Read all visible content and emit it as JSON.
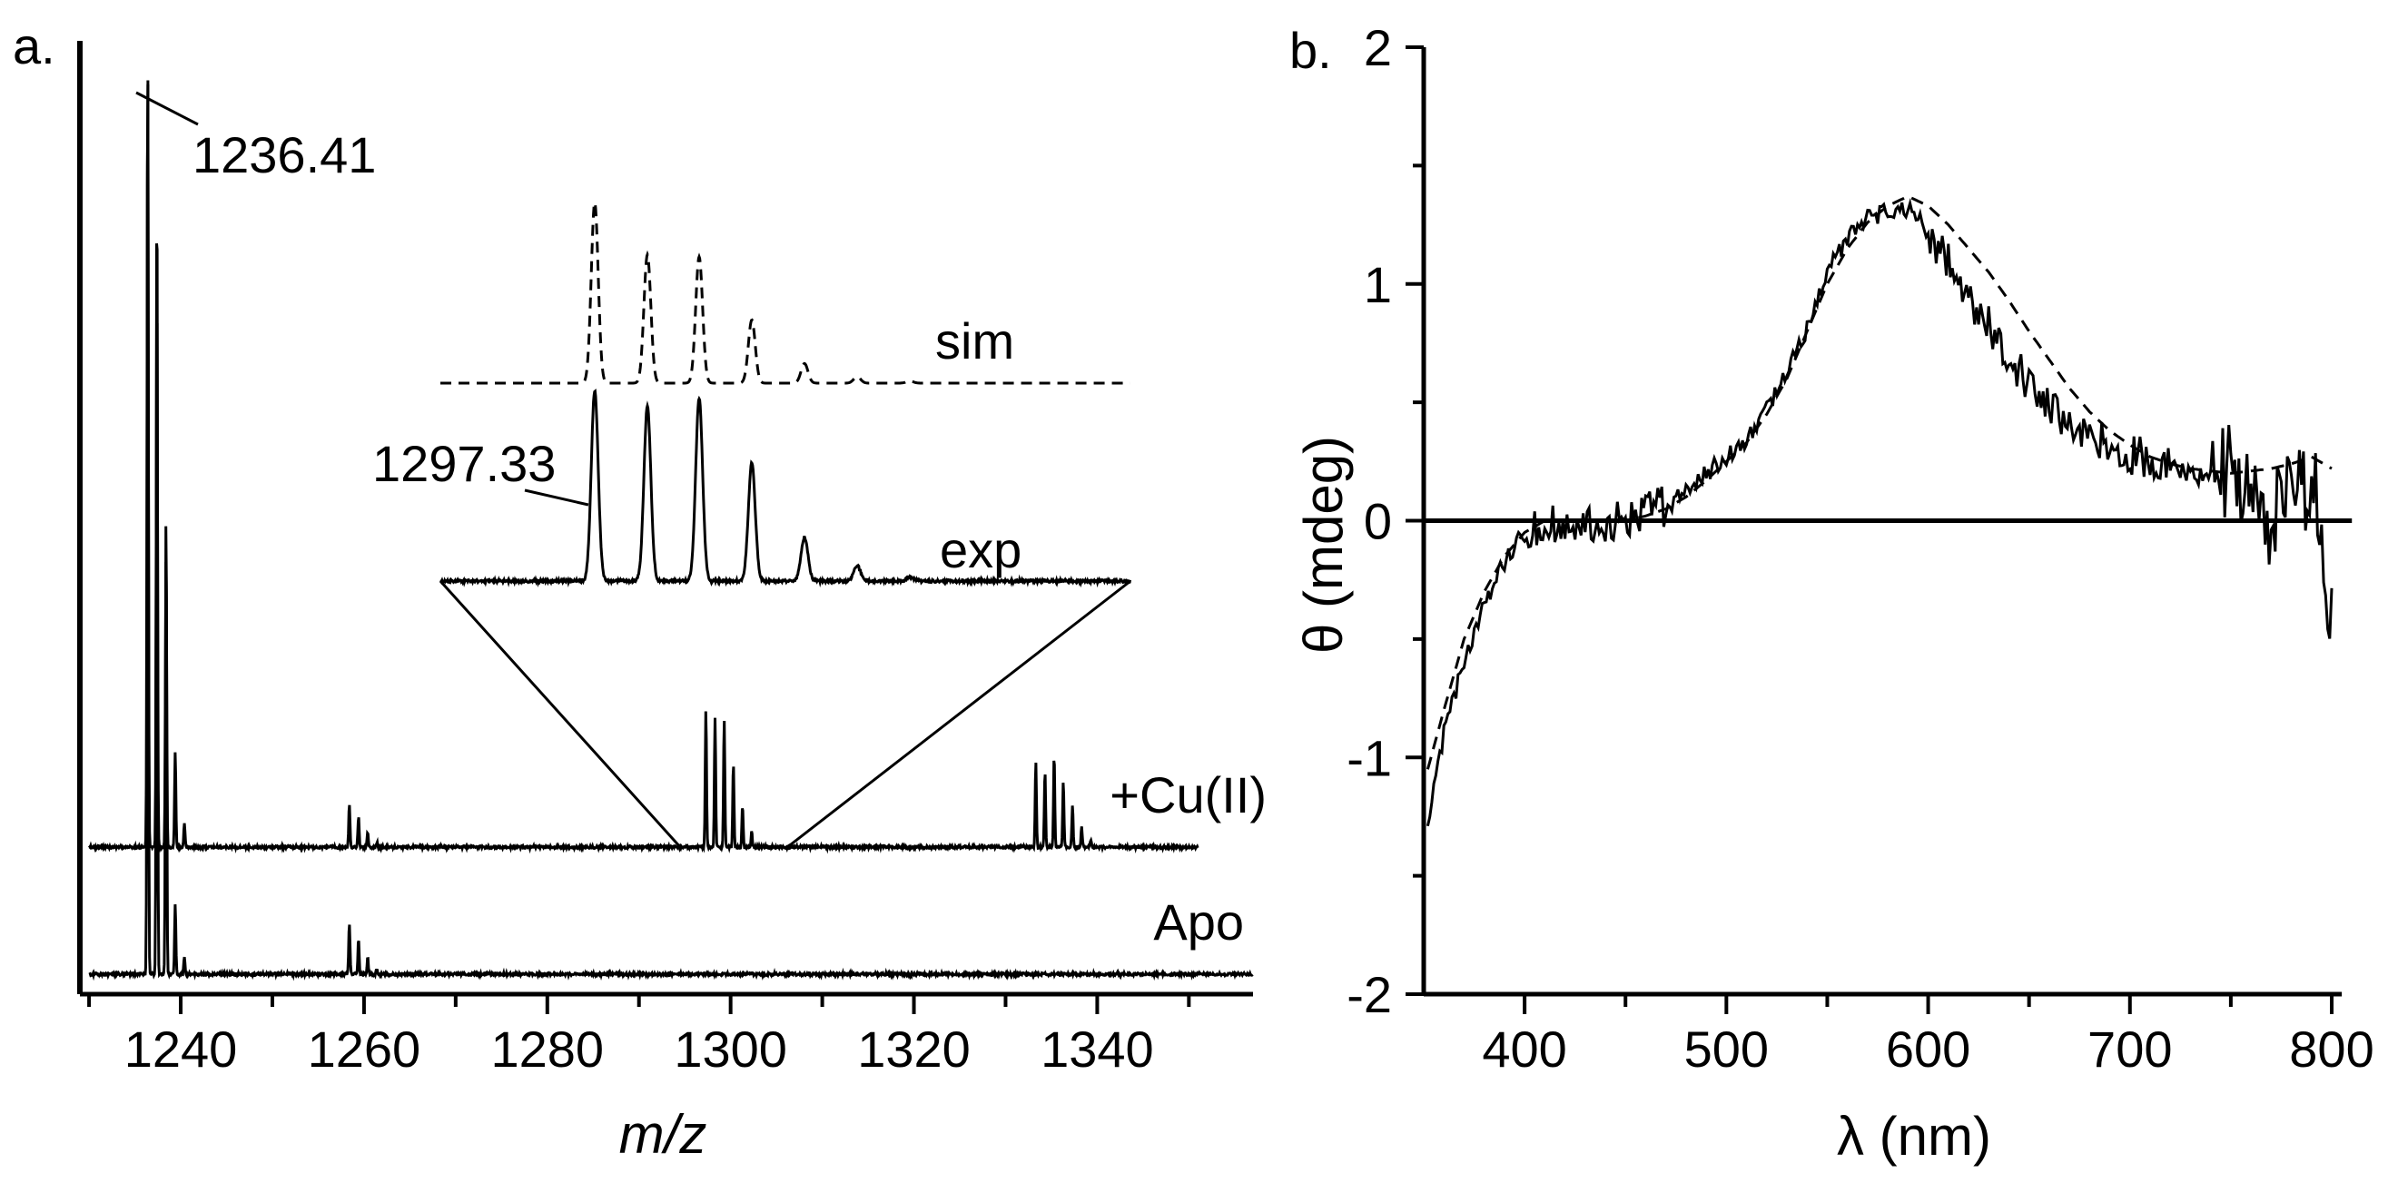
{
  "figure": {
    "panel_a_label": "a.",
    "panel_b_label": "b."
  },
  "chart_data": [
    {
      "type": "line",
      "title": "",
      "panel_label": "a.",
      "xlabel": "m/z",
      "ylabel": "",
      "xlim": [
        1229,
        1357
      ],
      "xticks": [
        1240,
        1260,
        1280,
        1300,
        1320,
        1340
      ],
      "xtick_labels": [
        "1240",
        "1260",
        "1280",
        "1300",
        "1320",
        "1340"
      ],
      "grid": false,
      "peak_label_main": "1236.41",
      "series": [
        {
          "name": "+Cu(II)",
          "x_range": [
            1230,
            1351
          ],
          "peaks": [
            [
              1236.4,
              1.0
            ],
            [
              1237.4,
              0.72
            ],
            [
              1238.4,
              0.37
            ],
            [
              1239.4,
              0.12
            ],
            [
              1240.4,
              0.03
            ],
            [
              1258.4,
              0.055
            ],
            [
              1259.4,
              0.038
            ],
            [
              1260.4,
              0.018
            ],
            [
              1261.4,
              0.006
            ],
            [
              1297.3,
              0.172
            ],
            [
              1298.3,
              0.162
            ],
            [
              1299.3,
              0.161
            ],
            [
              1300.3,
              0.105
            ],
            [
              1301.3,
              0.052
            ],
            [
              1302.3,
              0.019
            ],
            [
              1333.3,
              0.107
            ],
            [
              1334.3,
              0.095
            ],
            [
              1335.3,
              0.115
            ],
            [
              1336.3,
              0.082
            ],
            [
              1337.3,
              0.052
            ],
            [
              1338.3,
              0.025
            ],
            [
              1339.3,
              0.01
            ]
          ]
        },
        {
          "name": "Apo",
          "x_range": [
            1230,
            1357
          ],
          "peaks": [
            [
              1236.4,
              1.0
            ],
            [
              1237.4,
              0.86
            ],
            [
              1238.4,
              0.5
            ],
            [
              1239.4,
              0.075
            ],
            [
              1240.4,
              0.018
            ],
            [
              1258.4,
              0.055
            ],
            [
              1259.4,
              0.038
            ],
            [
              1260.4,
              0.018
            ],
            [
              1261.4,
              0.006
            ]
          ]
        }
      ],
      "inset": {
        "zoom_from_mz": [
          1294.5,
          1306.2
        ],
        "peak_label": "1297.33",
        "spacing_mz": 1.0,
        "series": [
          {
            "name": "sim",
            "style": "dashed",
            "relative_heights": [
              0.83,
              0.59,
              0.58,
              0.29,
              0.09,
              0.03,
              0.01
            ]
          },
          {
            "name": "exp",
            "style": "solid",
            "relative_heights": [
              1.0,
              0.92,
              0.96,
              0.62,
              0.23,
              0.08,
              0.02
            ]
          }
        ]
      }
    },
    {
      "type": "line",
      "title": "",
      "panel_label": "b.",
      "xlabel": "λ (nm)",
      "ylabel": "θ (mdeg)",
      "xlim": [
        350,
        800
      ],
      "ylim": [
        -2,
        2
      ],
      "xticks": [
        400,
        500,
        600,
        700,
        800
      ],
      "xtick_labels": [
        "400",
        "500",
        "600",
        "700",
        "800"
      ],
      "yticks": [
        -2,
        -1,
        0,
        1,
        2
      ],
      "ytick_labels": [
        "-2",
        "-1",
        "0",
        "1",
        "2"
      ],
      "grid": false,
      "zero_line": true,
      "series": [
        {
          "name": "experimental",
          "style": "solid",
          "x": [
            352,
            360,
            370,
            380,
            390,
            400,
            410,
            420,
            430,
            440,
            450,
            460,
            470,
            480,
            490,
            500,
            510,
            520,
            530,
            540,
            550,
            560,
            570,
            580,
            590,
            600,
            610,
            620,
            630,
            640,
            650,
            660,
            670,
            680,
            690,
            700,
            710,
            720,
            730,
            740,
            750,
            760,
            770,
            780,
            790,
            795,
            800
          ],
          "y": [
            -1.3,
            -0.9,
            -0.6,
            -0.35,
            -0.18,
            -0.05,
            0.0,
            -0.05,
            -0.02,
            0.0,
            0.0,
            0.03,
            0.06,
            0.12,
            0.2,
            0.27,
            0.35,
            0.47,
            0.62,
            0.82,
            1.05,
            1.2,
            1.28,
            1.3,
            1.32,
            1.22,
            1.1,
            0.95,
            0.82,
            0.7,
            0.58,
            0.5,
            0.42,
            0.36,
            0.32,
            0.28,
            0.25,
            0.22,
            0.2,
            0.18,
            0.25,
            0.15,
            0.0,
            0.2,
            0.1,
            0.05,
            -0.5
          ]
        },
        {
          "name": "simulated",
          "style": "dashed",
          "x": [
            352,
            360,
            370,
            380,
            390,
            400,
            410,
            420,
            430,
            440,
            450,
            460,
            470,
            480,
            490,
            500,
            510,
            520,
            530,
            540,
            550,
            560,
            570,
            580,
            590,
            600,
            610,
            620,
            630,
            640,
            650,
            660,
            670,
            680,
            690,
            700,
            710,
            720,
            730,
            740,
            750,
            760,
            770,
            780,
            790,
            800
          ],
          "y": [
            -1.05,
            -0.8,
            -0.5,
            -0.3,
            -0.15,
            -0.05,
            0.0,
            0.0,
            0.0,
            0.0,
            0.0,
            0.02,
            0.05,
            0.1,
            0.17,
            0.25,
            0.33,
            0.45,
            0.6,
            0.8,
            1.0,
            1.15,
            1.26,
            1.33,
            1.37,
            1.33,
            1.25,
            1.15,
            1.05,
            0.93,
            0.8,
            0.68,
            0.56,
            0.46,
            0.38,
            0.32,
            0.27,
            0.24,
            0.22,
            0.21,
            0.2,
            0.21,
            0.22,
            0.24,
            0.27,
            0.22
          ]
        }
      ]
    }
  ]
}
